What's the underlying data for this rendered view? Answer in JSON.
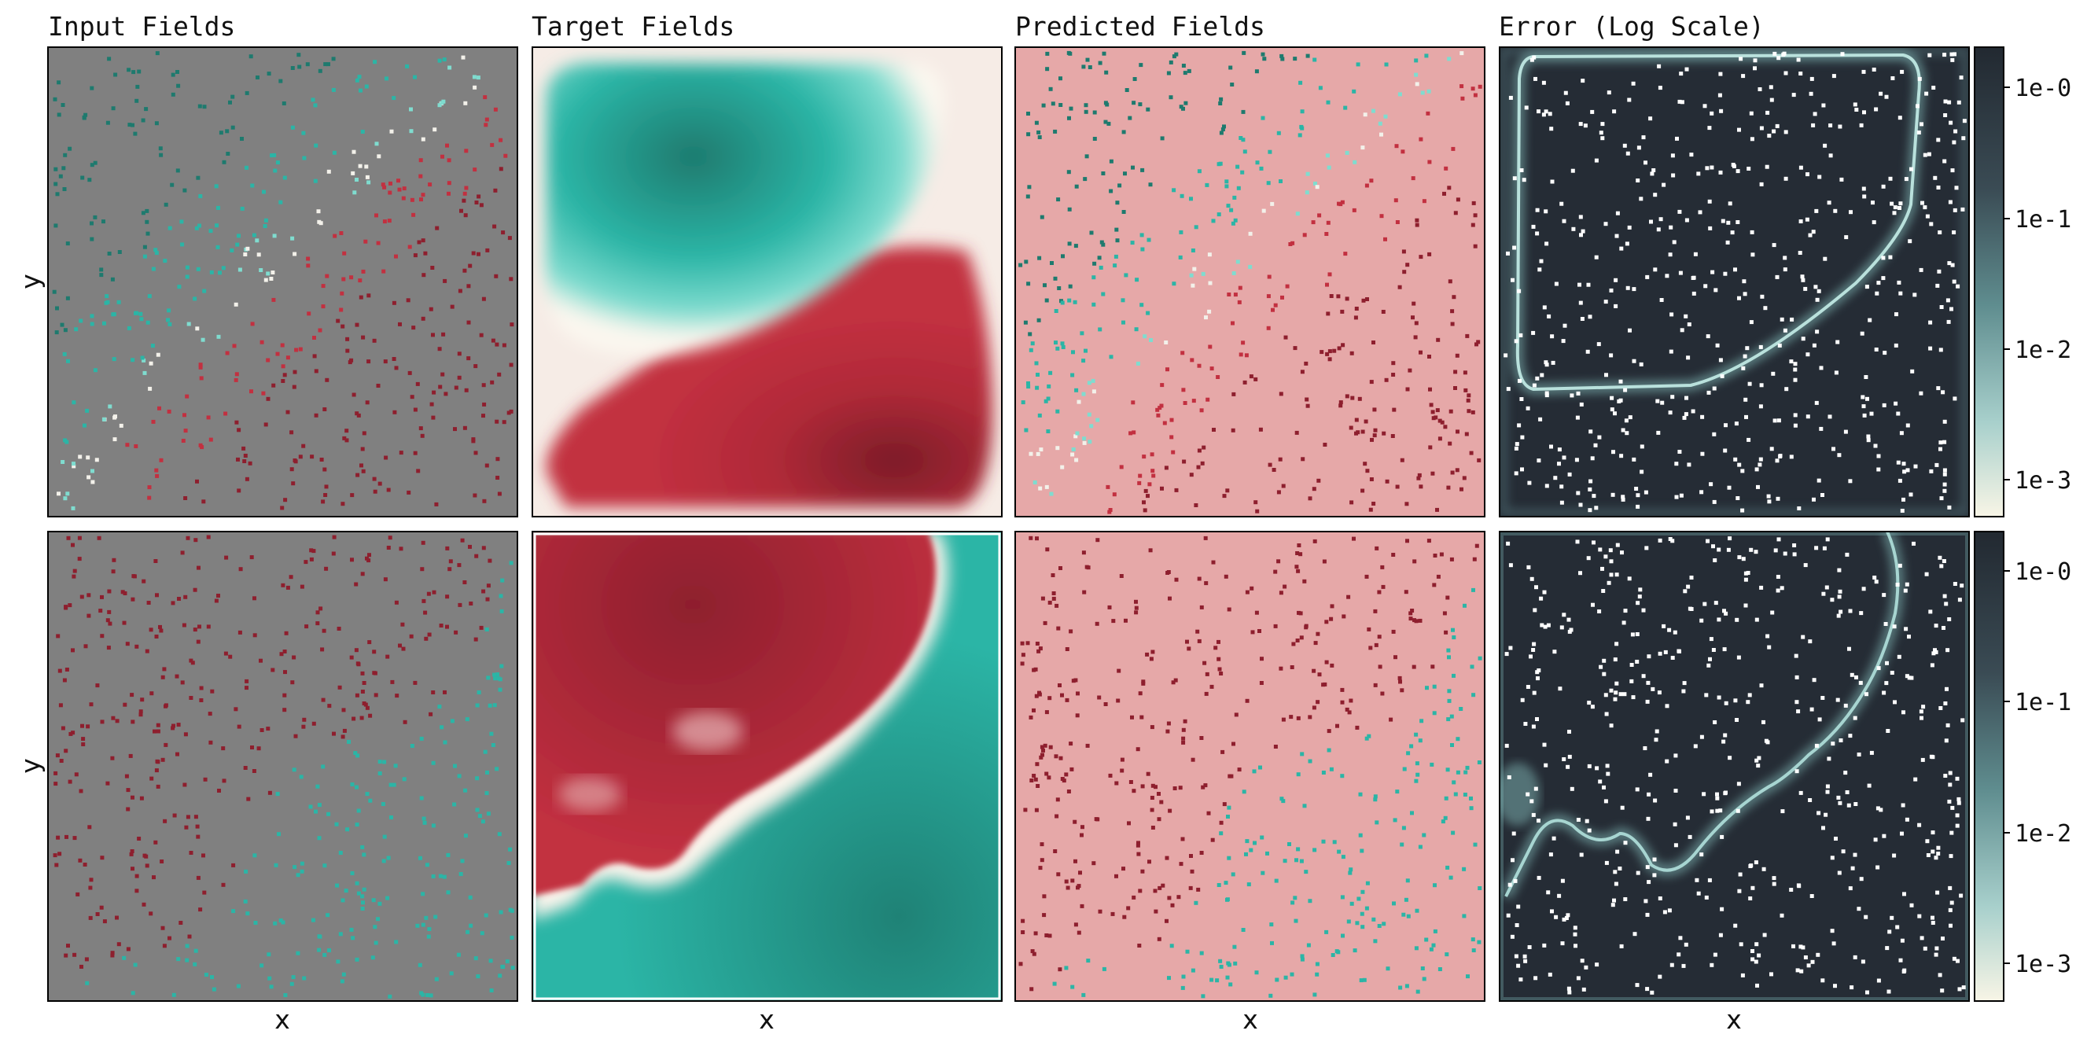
{
  "chart_data": {
    "type": "heatmap",
    "column_titles": [
      "Input Fields",
      "Target Fields",
      "Predicted Fields",
      "Error (Log Scale)"
    ],
    "xlabel": "x",
    "ylabel": "y",
    "rows": 2,
    "colorbar": {
      "scale": "log",
      "tick_labels": [
        "1e-0",
        "1e-1",
        "1e-2",
        "1e-3"
      ],
      "tick_values": [
        1,
        0.1,
        0.01,
        0.001
      ]
    },
    "grid": false,
    "panels": [
      {
        "row": 0,
        "column": "Input Fields",
        "description": "sparse point samples on gray background"
      },
      {
        "row": 0,
        "column": "Target Fields",
        "pattern": "teal region upper-left, crimson region lower-right"
      },
      {
        "row": 0,
        "column": "Predicted Fields",
        "description": "sparse point samples on pink background"
      },
      {
        "row": 0,
        "column": "Error (Log Scale)",
        "description": "high error along interface curve"
      },
      {
        "row": 1,
        "column": "Input Fields",
        "description": "sparse point samples on gray background"
      },
      {
        "row": 1,
        "column": "Target Fields",
        "pattern": "crimson region upper-left, teal region lower-right, rough interface"
      },
      {
        "row": 1,
        "column": "Predicted Fields",
        "description": "sparse point samples on pink background"
      },
      {
        "row": 1,
        "column": "Error (Log Scale)",
        "description": "high error along rough interface"
      }
    ]
  },
  "colors": {
    "teal": "#2bb5a6",
    "teal_dark": "#1e7a6e",
    "crimson": "#c23040",
    "crimson_dark": "#7c1c28",
    "input_bg": "#808080",
    "predicted_bg": "#e6a8a8",
    "error_bg": "#252c35",
    "error_line": "#8cc7c5"
  }
}
